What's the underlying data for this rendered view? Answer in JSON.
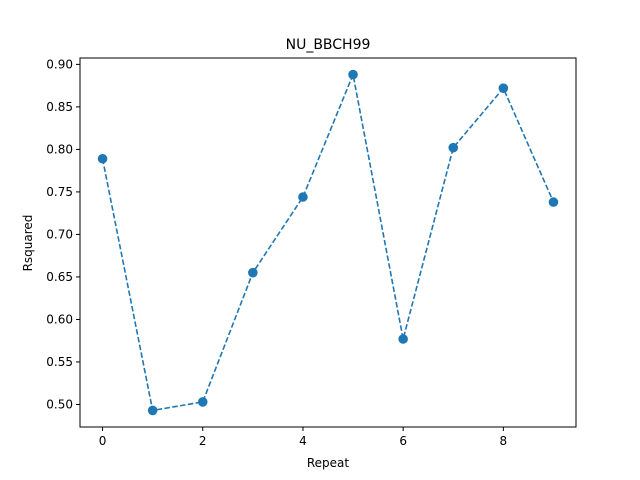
{
  "chart_data": {
    "type": "line",
    "title": "NU_BBCH99",
    "xlabel": "Repeat",
    "ylabel": "Rsquared",
    "x": [
      0,
      1,
      2,
      3,
      4,
      5,
      6,
      7,
      8,
      9
    ],
    "series": [
      {
        "values": [
          0.789,
          0.493,
          0.503,
          0.655,
          0.744,
          0.888,
          0.577,
          0.802,
          0.872,
          0.738
        ],
        "color": "#1f77b4",
        "line_style": "dashed",
        "marker": "circle"
      }
    ],
    "xlim": [
      -0.45,
      9.45
    ],
    "ylim": [
      0.4735,
      0.9075
    ],
    "xticks": [
      0,
      2,
      4,
      6,
      8
    ],
    "xtick_labels": [
      "0",
      "2",
      "4",
      "6",
      "8"
    ],
    "yticks": [
      0.5,
      0.55,
      0.6,
      0.65,
      0.7,
      0.75,
      0.8,
      0.85,
      0.9
    ],
    "ytick_labels": [
      "0.50",
      "0.55",
      "0.60",
      "0.65",
      "0.70",
      "0.75",
      "0.80",
      "0.85",
      "0.90"
    ],
    "grid": false,
    "legend": "none"
  }
}
